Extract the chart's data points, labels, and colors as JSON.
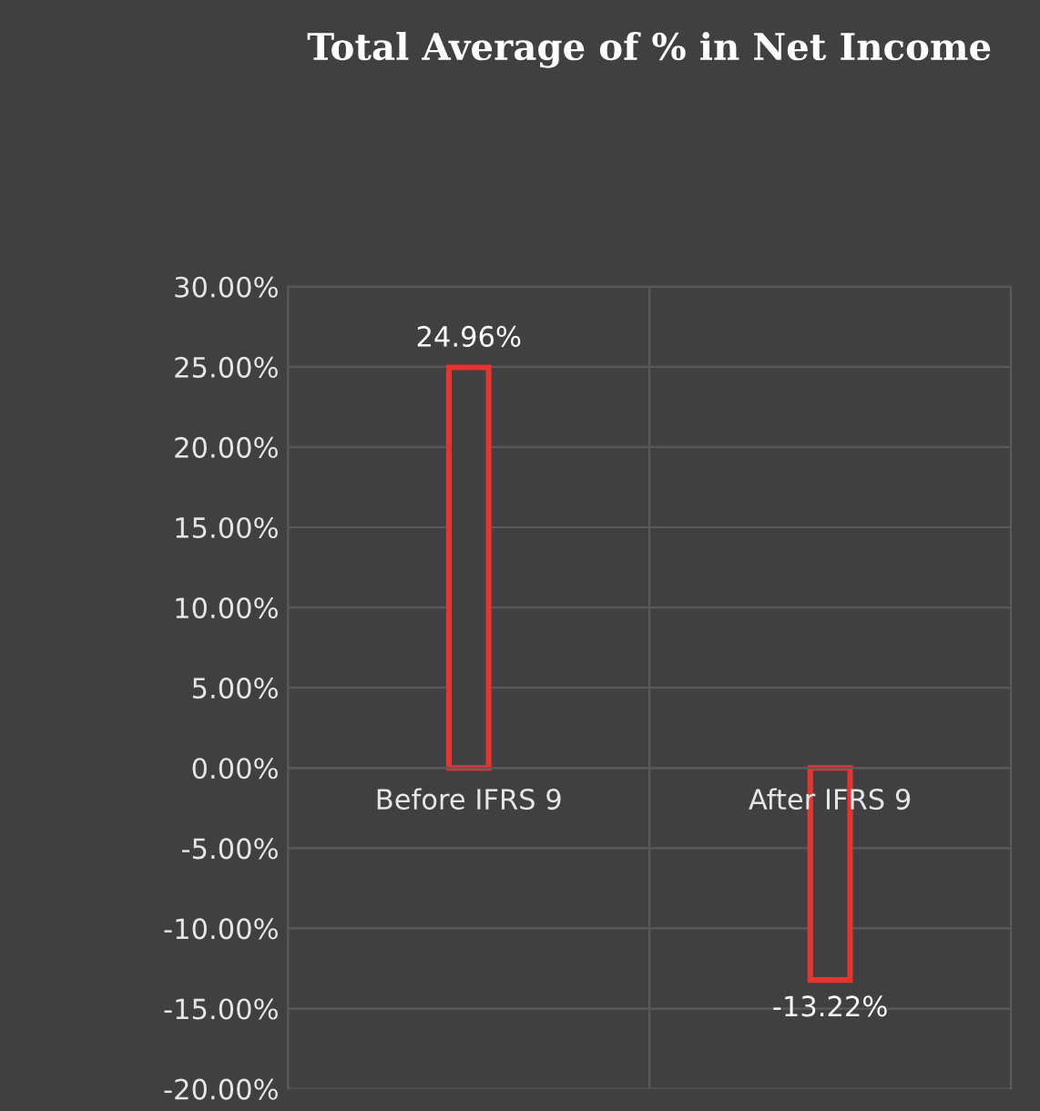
{
  "chart_data": {
    "type": "bar",
    "title": "Total Average of % in Net Income",
    "categories": [
      "Before IFRS 9",
      "After IFRS 9"
    ],
    "values": [
      24.96,
      -13.22
    ],
    "value_labels": [
      "24.96%",
      "-13.22%"
    ],
    "color": "#e8332f",
    "ylim": [
      -20,
      30
    ],
    "yticks": [
      {
        "value": -20,
        "label": "-20.00%"
      },
      {
        "value": -15,
        "label": "-15.00%"
      },
      {
        "value": -10,
        "label": "-10.00%"
      },
      {
        "value": -5,
        "label": "-5.00%"
      },
      {
        "value": 0,
        "label": "0.00%"
      },
      {
        "value": 5,
        "label": "5.00%"
      },
      {
        "value": 10,
        "label": "10.00%"
      },
      {
        "value": 15,
        "label": "15.00%"
      },
      {
        "value": 20,
        "label": "20.00%"
      },
      {
        "value": 25,
        "label": "25.00%"
      },
      {
        "value": 30,
        "label": "30.00%"
      }
    ],
    "grid": true,
    "legend": false
  }
}
